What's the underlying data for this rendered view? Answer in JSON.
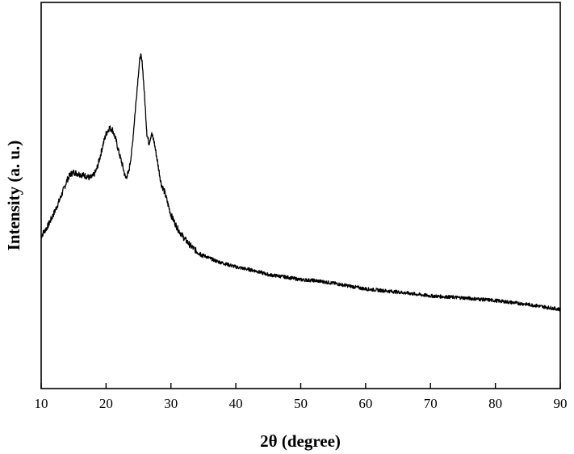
{
  "chart_data": {
    "type": "line",
    "xlabel": "2θ (degree)",
    "ylabel": "Intensity (a. u.)",
    "xlim": [
      10,
      90
    ],
    "ylim": [
      0,
      100
    ],
    "x_ticks": [
      "10",
      "20",
      "30",
      "40",
      "50",
      "60",
      "70",
      "80",
      "90"
    ],
    "y_ticks_labeled": false,
    "grid": false,
    "legend": "none",
    "line_color": "#000000",
    "series": [
      {
        "x": [
          10,
          11,
          12,
          13,
          14,
          14.5,
          15,
          16,
          17,
          17.5,
          18,
          18.5,
          19,
          19.5,
          20,
          20.5,
          21,
          21.5,
          22,
          22.5,
          23,
          23.5,
          24,
          24.5,
          25,
          25.3,
          25.6,
          26,
          26.3,
          26.6,
          27,
          27.4,
          28,
          28.5,
          29,
          29.5,
          30,
          31,
          32,
          33,
          34,
          35,
          37,
          40,
          43,
          45,
          48,
          50,
          52,
          55,
          60,
          65,
          70,
          75,
          80,
          85,
          90
        ],
        "y": [
          39.5,
          42,
          45.5,
          49.5,
          54,
          55.5,
          56,
          55.5,
          55,
          54.5,
          55,
          56.5,
          59.5,
          63,
          66,
          67.5,
          67,
          64.5,
          61,
          58,
          54.5,
          56,
          62,
          72,
          82,
          86.5,
          84,
          74,
          66,
          63.5,
          66,
          64,
          58,
          53,
          51,
          48,
          45,
          41.5,
          39,
          37,
          35.5,
          34.5,
          33,
          31.5,
          30.5,
          29.5,
          28.8,
          28.2,
          28,
          27.3,
          25.8,
          25,
          24,
          23.5,
          22.8,
          21.8,
          20.5
        ]
      }
    ]
  }
}
